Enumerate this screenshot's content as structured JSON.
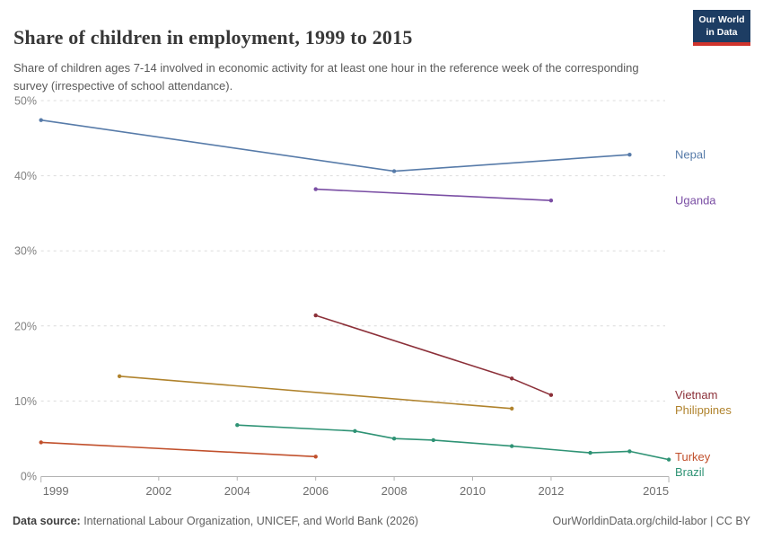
{
  "header": {
    "title": "Share of children in employment, 1999 to 2015",
    "subtitle": "Share of children ages 7-14 involved in economic activity for at least one hour in the reference week of the corresponding survey (irrespective of school attendance).",
    "logo": {
      "line1": "Our World",
      "line2": "in Data",
      "bg_color": "#1d3d63",
      "bar_color": "#d0342c"
    }
  },
  "chart_data": {
    "type": "line",
    "title": "Share of children in employment, 1999 to 2015",
    "xlabel": "",
    "ylabel": "",
    "xlim": [
      1999,
      2015
    ],
    "ylim": [
      0,
      50
    ],
    "x_ticks": [
      1999,
      2002,
      2004,
      2006,
      2008,
      2010,
      2012,
      2015
    ],
    "y_ticks": [
      0,
      10,
      20,
      30,
      40,
      50
    ],
    "y_tick_suffix": "%",
    "grid": "horizontal-dashed",
    "legend_position": "right-end-labels",
    "series": [
      {
        "name": "Nepal",
        "color": "#577BA9",
        "points": [
          [
            1999,
            47.4
          ],
          [
            2008,
            40.6
          ],
          [
            2014,
            42.8
          ]
        ]
      },
      {
        "name": "Uganda",
        "color": "#7A4EA4",
        "points": [
          [
            2006,
            38.2
          ],
          [
            2012,
            36.7
          ]
        ]
      },
      {
        "name": "Vietnam",
        "color": "#8C3039",
        "points": [
          [
            2006,
            21.4
          ],
          [
            2011,
            13.0
          ],
          [
            2012,
            10.8
          ]
        ]
      },
      {
        "name": "Philippines",
        "color": "#B0832D",
        "points": [
          [
            2001,
            13.3
          ],
          [
            2011,
            9.0
          ]
        ]
      },
      {
        "name": "Turkey",
        "color": "#C1502C",
        "points": [
          [
            1999,
            4.5
          ],
          [
            2006,
            2.6
          ]
        ]
      },
      {
        "name": "Brazil",
        "color": "#2F9375",
        "points": [
          [
            2004,
            6.8
          ],
          [
            2007,
            6.0
          ],
          [
            2008,
            5.0
          ],
          [
            2009,
            4.8
          ],
          [
            2011,
            4.0
          ],
          [
            2013,
            3.1
          ],
          [
            2014,
            3.3
          ],
          [
            2015,
            2.2
          ]
        ]
      }
    ]
  },
  "footer": {
    "source_label": "Data source:",
    "source_text": " International Labour Organization, UNICEF, and World Bank (2026)",
    "rights": "OurWorldinData.org/child-labor | CC BY"
  }
}
